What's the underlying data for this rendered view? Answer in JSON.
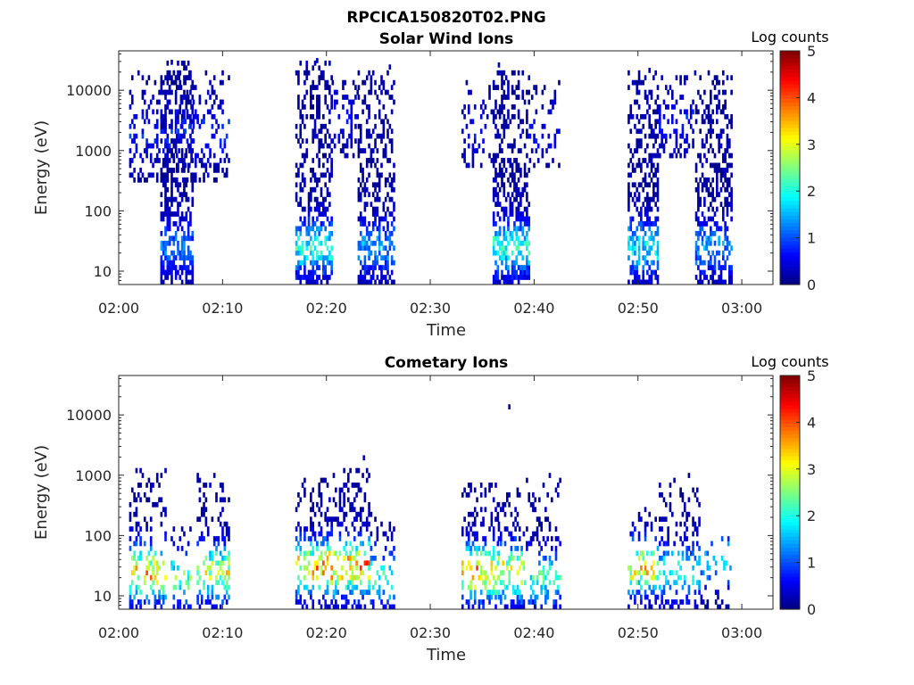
{
  "figure": {
    "title": "RPCICA150820T02.PNG"
  },
  "chart_data": [
    {
      "type": "heatmap",
      "title": "Solar Wind Ions",
      "xlabel": "Time",
      "ylabel": "Energy (eV)",
      "x_ticks": [
        "02:00",
        "02:10",
        "02:20",
        "02:30",
        "02:40",
        "02:50",
        "03:00"
      ],
      "x_range_minutes": [
        0,
        63
      ],
      "y_scale": "log",
      "y_range_ev": [
        6,
        45000
      ],
      "y_ticks": [
        "10",
        "100",
        "1000",
        "10000"
      ],
      "colorbar": {
        "label": "Log counts",
        "range": [
          0,
          5
        ],
        "ticks": [
          "0",
          "1",
          "2",
          "3",
          "4",
          "5"
        ],
        "colormap": "jet"
      },
      "clusters": [
        {
          "t_start": 1.0,
          "t_end": 5.5,
          "e_low": 300,
          "e_high": 20000,
          "density": 0.35,
          "peak": 0.6,
          "peak_e": 2000
        },
        {
          "t_start": 4.0,
          "t_end": 7.2,
          "e_low": 6,
          "e_high": 30000,
          "density": 0.6,
          "peak": 1.0,
          "peak_e": 25
        },
        {
          "t_start": 5.5,
          "t_end": 10.5,
          "e_low": 300,
          "e_high": 20000,
          "density": 0.35,
          "peak": 0.6,
          "peak_e": 2000
        },
        {
          "t_start": 17.0,
          "t_end": 20.5,
          "e_low": 6,
          "e_high": 30000,
          "density": 0.55,
          "peak": 1.8,
          "peak_e": 25
        },
        {
          "t_start": 20.5,
          "t_end": 23.0,
          "e_low": 800,
          "e_high": 15000,
          "density": 0.3,
          "peak": 0.4,
          "peak_e": 3000
        },
        {
          "t_start": 23.0,
          "t_end": 26.5,
          "e_low": 6,
          "e_high": 20000,
          "density": 0.55,
          "peak": 1.2,
          "peak_e": 25
        },
        {
          "t_start": 33.0,
          "t_end": 36.0,
          "e_low": 500,
          "e_high": 15000,
          "density": 0.3,
          "peak": 0.4,
          "peak_e": 2000
        },
        {
          "t_start": 36.0,
          "t_end": 39.5,
          "e_low": 6,
          "e_high": 20000,
          "density": 0.6,
          "peak": 1.9,
          "peak_e": 25
        },
        {
          "t_start": 39.5,
          "t_end": 42.5,
          "e_low": 500,
          "e_high": 15000,
          "density": 0.3,
          "peak": 0.4,
          "peak_e": 2000
        },
        {
          "t_start": 49.0,
          "t_end": 52.0,
          "e_low": 6,
          "e_high": 20000,
          "density": 0.6,
          "peak": 1.7,
          "peak_e": 25
        },
        {
          "t_start": 52.0,
          "t_end": 55.5,
          "e_low": 800,
          "e_high": 20000,
          "density": 0.3,
          "peak": 0.5,
          "peak_e": 3000
        },
        {
          "t_start": 55.5,
          "t_end": 59.0,
          "e_low": 6,
          "e_high": 20000,
          "density": 0.55,
          "peak": 1.2,
          "peak_e": 25
        }
      ],
      "isolated_points": [
        {
          "t": 5.0,
          "e": 30000
        },
        {
          "t": 19.0,
          "e": 32000
        },
        {
          "t": 26.0,
          "e": 25000
        },
        {
          "t": 36.5,
          "e": 27000
        },
        {
          "t": 51.0,
          "e": 22000
        }
      ]
    },
    {
      "type": "heatmap",
      "title": "Cometary Ions",
      "xlabel": "Time",
      "ylabel": "Energy (eV)",
      "x_ticks": [
        "02:00",
        "02:10",
        "02:20",
        "02:30",
        "02:40",
        "02:50",
        "03:00"
      ],
      "x_range_minutes": [
        0,
        63
      ],
      "y_scale": "log",
      "y_range_ev": [
        6,
        45000
      ],
      "y_ticks": [
        "10",
        "100",
        "1000",
        "10000"
      ],
      "colorbar": {
        "label": "Log counts",
        "range": [
          0,
          5
        ],
        "ticks": [
          "0",
          "1",
          "2",
          "3",
          "4",
          "5"
        ],
        "colormap": "jet"
      },
      "clusters": [
        {
          "t_start": 1.0,
          "t_end": 4.5,
          "e_low": 6,
          "e_high": 1200,
          "density": 0.35,
          "peak": 3.2,
          "peak_e": 25
        },
        {
          "t_start": 5.0,
          "t_end": 7.0,
          "e_low": 6,
          "e_high": 150,
          "density": 0.4,
          "peak": 2.2,
          "peak_e": 20
        },
        {
          "t_start": 7.5,
          "t_end": 10.5,
          "e_low": 6,
          "e_high": 1100,
          "density": 0.35,
          "peak": 2.8,
          "peak_e": 25
        },
        {
          "t_start": 17.0,
          "t_end": 20.0,
          "e_low": 6,
          "e_high": 900,
          "density": 0.45,
          "peak": 3.2,
          "peak_e": 30
        },
        {
          "t_start": 20.0,
          "t_end": 24.0,
          "e_low": 6,
          "e_high": 1200,
          "density": 0.4,
          "peak": 3.5,
          "peak_e": 30
        },
        {
          "t_start": 24.0,
          "t_end": 26.5,
          "e_low": 6,
          "e_high": 250,
          "density": 0.35,
          "peak": 2.0,
          "peak_e": 20
        },
        {
          "t_start": 33.0,
          "t_end": 36.5,
          "e_low": 6,
          "e_high": 700,
          "density": 0.45,
          "peak": 3.3,
          "peak_e": 25
        },
        {
          "t_start": 36.5,
          "t_end": 39.0,
          "e_low": 6,
          "e_high": 600,
          "density": 0.4,
          "peak": 3.0,
          "peak_e": 25
        },
        {
          "t_start": 39.0,
          "t_end": 42.5,
          "e_low": 6,
          "e_high": 1100,
          "density": 0.35,
          "peak": 2.0,
          "peak_e": 20
        },
        {
          "t_start": 49.0,
          "t_end": 52.0,
          "e_low": 6,
          "e_high": 300,
          "density": 0.4,
          "peak": 3.0,
          "peak_e": 30
        },
        {
          "t_start": 52.0,
          "t_end": 56.0,
          "e_low": 6,
          "e_high": 1000,
          "density": 0.35,
          "peak": 1.8,
          "peak_e": 25
        },
        {
          "t_start": 56.0,
          "t_end": 59.0,
          "e_low": 6,
          "e_high": 100,
          "density": 0.3,
          "peak": 1.5,
          "peak_e": 40
        }
      ],
      "isolated_points": [
        {
          "t": 37.5,
          "e": 14000
        },
        {
          "t": 23.5,
          "e": 2000
        }
      ]
    }
  ]
}
